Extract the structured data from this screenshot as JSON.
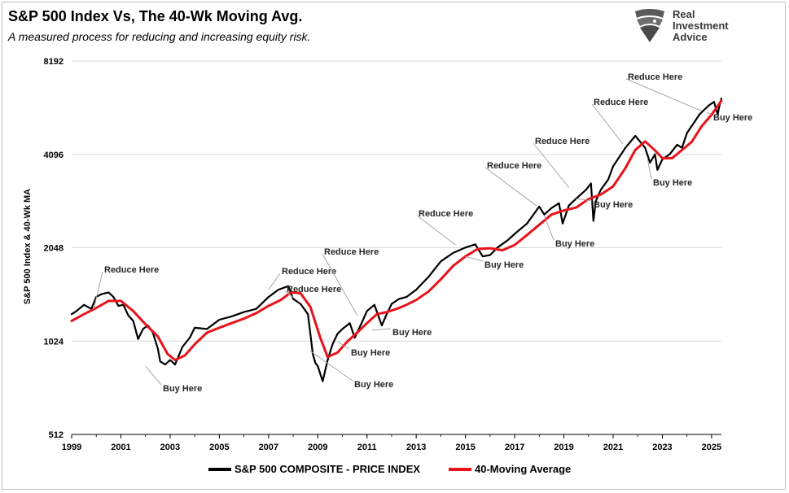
{
  "chart_data": {
    "type": "line",
    "title": "S&P 500 Index Vs, The 40-Wk Moving Avg.",
    "subtitle": "A measured process for reducing and increasing equity risk.",
    "ylabel": "S&P 500 Index & 40-Wk MA",
    "xlabel": "",
    "y_scale": "log2",
    "ylim": [
      512,
      8192
    ],
    "y_ticks": [
      512,
      1024,
      2048,
      4096,
      8192
    ],
    "y_tick_labels": [
      "512",
      "1024",
      "2048",
      "4096",
      "8192"
    ],
    "xlim": [
      1999,
      2025.4
    ],
    "x_ticks": [
      1999,
      2001,
      2003,
      2005,
      2007,
      2009,
      2011,
      2013,
      2015,
      2017,
      2019,
      2021,
      2023,
      2025
    ],
    "x_tick_labels": [
      "1999",
      "2001",
      "2003",
      "2005",
      "2007",
      "2009",
      "2011",
      "2013",
      "2015",
      "2017",
      "2019",
      "2021",
      "2023",
      "2025"
    ],
    "grid": "horizontal",
    "legend_position": "bottom",
    "series": [
      {
        "name": "S&P 500 COMPOSITE - PRICE INDEX",
        "color": "#000000",
        "x": [
          1999.0,
          1999.2,
          1999.5,
          1999.8,
          2000.0,
          2000.2,
          2000.5,
          2000.7,
          2000.9,
          2001.1,
          2001.3,
          2001.5,
          2001.7,
          2001.9,
          2002.1,
          2002.3,
          2002.5,
          2002.6,
          2002.8,
          2003.0,
          2003.2,
          2003.5,
          2003.8,
          2004.0,
          2004.5,
          2005.0,
          2005.5,
          2006.0,
          2006.5,
          2007.0,
          2007.4,
          2007.8,
          2008.0,
          2008.3,
          2008.6,
          2008.8,
          2008.9,
          2009.0,
          2009.2,
          2009.4,
          2009.6,
          2009.8,
          2010.0,
          2010.3,
          2010.5,
          2010.8,
          2011.0,
          2011.3,
          2011.6,
          2011.8,
          2012.0,
          2012.3,
          2012.6,
          2013.0,
          2013.5,
          2014.0,
          2014.5,
          2015.0,
          2015.4,
          2015.7,
          2016.0,
          2016.3,
          2016.7,
          2017.0,
          2017.5,
          2018.0,
          2018.2,
          2018.5,
          2018.8,
          2018.95,
          2019.2,
          2019.5,
          2019.9,
          2020.1,
          2020.2,
          2020.3,
          2020.5,
          2020.8,
          2021.0,
          2021.5,
          2021.9,
          2022.1,
          2022.3,
          2022.5,
          2022.7,
          2022.8,
          2023.0,
          2023.3,
          2023.6,
          2023.8,
          2024.0,
          2024.3,
          2024.5,
          2024.7,
          2024.9,
          2025.1,
          2025.25,
          2025.3,
          2025.4
        ],
        "values": [
          1250,
          1280,
          1340,
          1300,
          1420,
          1450,
          1470,
          1420,
          1330,
          1340,
          1240,
          1190,
          1040,
          1120,
          1150,
          1090,
          970,
          880,
          860,
          890,
          860,
          980,
          1050,
          1130,
          1120,
          1200,
          1230,
          1270,
          1300,
          1420,
          1500,
          1540,
          1400,
          1350,
          1250,
          930,
          870,
          850,
          760,
          890,
          1000,
          1080,
          1120,
          1170,
          1050,
          1180,
          1280,
          1340,
          1150,
          1250,
          1350,
          1400,
          1420,
          1500,
          1650,
          1850,
          1970,
          2050,
          2100,
          1920,
          1940,
          2050,
          2160,
          2270,
          2450,
          2780,
          2620,
          2750,
          2850,
          2450,
          2800,
          2950,
          3150,
          3300,
          2500,
          2900,
          3150,
          3400,
          3750,
          4300,
          4700,
          4500,
          4300,
          3850,
          4100,
          3650,
          3950,
          4100,
          4400,
          4300,
          4800,
          5200,
          5500,
          5700,
          5900,
          6050,
          5500,
          5800,
          6200
        ]
      },
      {
        "name": "40-Moving Average",
        "color": "#e8131b",
        "x": [
          1999.0,
          1999.5,
          2000.0,
          2000.5,
          2001.0,
          2001.5,
          2002.0,
          2002.5,
          2002.9,
          2003.2,
          2003.6,
          2004.0,
          2004.5,
          2005.0,
          2005.5,
          2006.0,
          2006.5,
          2007.0,
          2007.5,
          2007.9,
          2008.3,
          2008.7,
          2009.1,
          2009.4,
          2009.8,
          2010.2,
          2010.6,
          2011.0,
          2011.4,
          2011.8,
          2012.2,
          2012.6,
          2013.0,
          2013.5,
          2014.0,
          2014.5,
          2015.0,
          2015.5,
          2016.0,
          2016.5,
          2017.0,
          2017.5,
          2018.0,
          2018.5,
          2019.0,
          2019.5,
          2020.0,
          2020.5,
          2021.0,
          2021.5,
          2021.9,
          2022.3,
          2022.7,
          2023.0,
          2023.4,
          2023.8,
          2024.2,
          2024.6,
          2025.0,
          2025.4
        ],
        "values": [
          1190,
          1250,
          1310,
          1380,
          1380,
          1280,
          1160,
          1060,
          930,
          890,
          920,
          1000,
          1090,
          1130,
          1170,
          1210,
          1260,
          1330,
          1390,
          1470,
          1460,
          1320,
          1050,
          910,
          940,
          1020,
          1090,
          1170,
          1250,
          1270,
          1300,
          1340,
          1390,
          1480,
          1620,
          1790,
          1920,
          2030,
          2040,
          2010,
          2090,
          2250,
          2430,
          2620,
          2700,
          2760,
          2940,
          3040,
          3230,
          3700,
          4230,
          4510,
          4220,
          3980,
          3980,
          4230,
          4500,
          5050,
          5500,
          6100
        ]
      }
    ],
    "annotations": [
      {
        "text": "Reduce Here",
        "x": 1999.9,
        "y": 1300
      },
      {
        "text": "Buy Here",
        "x": 2002.0,
        "y": 850
      },
      {
        "text": "Reduce Here",
        "x": 2007.0,
        "y": 1500
      },
      {
        "text": "Reduce Here",
        "x": 2008.3,
        "y": 1360
      },
      {
        "text": "Buy Here",
        "x": 2008.7,
        "y": 950
      },
      {
        "text": "Reduce Here",
        "x": 2010.6,
        "y": 1240
      },
      {
        "text": "Buy Here",
        "x": 2009.8,
        "y": 1020
      },
      {
        "text": "Buy Here",
        "x": 2011.2,
        "y": 1110
      },
      {
        "text": "Reduce Here",
        "x": 2014.6,
        "y": 2090
      },
      {
        "text": "Buy Here",
        "x": 2015.0,
        "y": 1920
      },
      {
        "text": "Reduce Here",
        "x": 2017.9,
        "y": 2790
      },
      {
        "text": "Buy Here",
        "x": 2018.2,
        "y": 2600
      },
      {
        "text": "Reduce Here",
        "x": 2019.2,
        "y": 3200
      },
      {
        "text": "Buy Here",
        "x": 2019.5,
        "y": 2950
      },
      {
        "text": "Reduce Here",
        "x": 2021.4,
        "y": 4420
      },
      {
        "text": "Buy Here",
        "x": 2022.4,
        "y": 3950
      },
      {
        "text": "Reduce Here",
        "x": 2024.6,
        "y": 5650
      },
      {
        "text": "Buy Here",
        "x": 2024.8,
        "y": 5580
      }
    ]
  },
  "logo": {
    "line1": "Real",
    "line2": "Investment",
    "line3": "Advice",
    "icon": "eagle-icon"
  }
}
